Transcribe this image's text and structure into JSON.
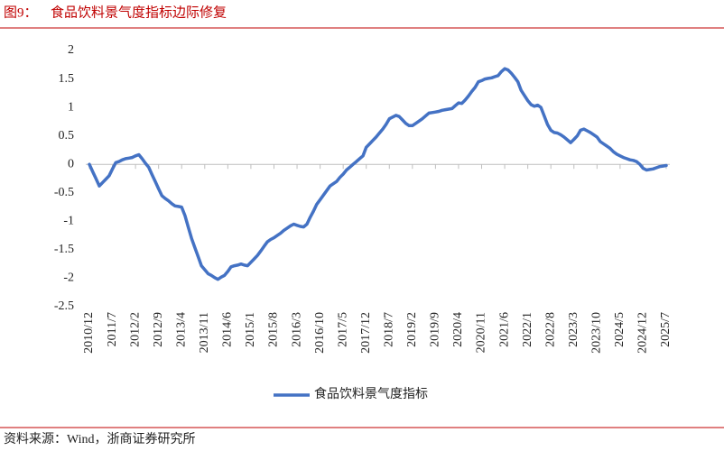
{
  "chart_data": {
    "type": "line",
    "figure_label": "图9：",
    "title": "食品饮料景气度指标边际修复",
    "source": "资料来源：Wind，浙商证券研究所",
    "categories": [
      "2010/12",
      null,
      null,
      null,
      null,
      null,
      null,
      "2011/7",
      null,
      null,
      null,
      null,
      null,
      null,
      "2012/2",
      null,
      null,
      null,
      null,
      null,
      null,
      "2012/9",
      null,
      null,
      null,
      null,
      null,
      null,
      "2013/4",
      null,
      null,
      null,
      null,
      null,
      null,
      "2013/11",
      null,
      null,
      null,
      null,
      null,
      null,
      "2014/6",
      null,
      null,
      null,
      null,
      null,
      null,
      "2015/1",
      null,
      null,
      null,
      null,
      null,
      null,
      "2015/8",
      null,
      null,
      null,
      null,
      null,
      null,
      "2016/3",
      null,
      null,
      null,
      null,
      null,
      null,
      "2016/10",
      null,
      null,
      null,
      null,
      null,
      null,
      "2017/5",
      null,
      null,
      null,
      null,
      null,
      null,
      "2017/12",
      null,
      null,
      null,
      null,
      null,
      null,
      "2018/7",
      null,
      null,
      null,
      null,
      null,
      null,
      "2019/2",
      null,
      null,
      null,
      null,
      null,
      null,
      "2019/9",
      null,
      null,
      null,
      null,
      null,
      null,
      "2020/4",
      null,
      null,
      null,
      null,
      null,
      null,
      "2020/11",
      null,
      null,
      null,
      null,
      null,
      null,
      "2021/6",
      null,
      null,
      null,
      null,
      null,
      null,
      "2022/1",
      null,
      null,
      null,
      null,
      null,
      null,
      "2022/8",
      null,
      null,
      null,
      null,
      null,
      null,
      "2023/3",
      null,
      null,
      null,
      null,
      null,
      null,
      "2023/10",
      null,
      null,
      null,
      null,
      null,
      null,
      "2024/5",
      null,
      null,
      null,
      null,
      null,
      null,
      "2024/12",
      null,
      null,
      null,
      null,
      null,
      null,
      "2025/7"
    ],
    "series": [
      {
        "name": "食品饮料景气度指标",
        "color": "#4472c4",
        "values": [
          0,
          -0.13,
          -0.25,
          -0.38,
          -0.32,
          -0.26,
          -0.2,
          -0.08,
          0.03,
          0.05,
          0.08,
          0.1,
          0.11,
          0.12,
          0.15,
          0.17,
          0.1,
          0.02,
          -0.05,
          -0.18,
          -0.3,
          -0.43,
          -0.55,
          -0.6,
          -0.64,
          -0.69,
          -0.73,
          -0.74,
          -0.75,
          -0.9,
          -1.1,
          -1.3,
          -1.46,
          -1.62,
          -1.78,
          -1.85,
          -1.92,
          -1.95,
          -1.99,
          -2.02,
          -1.98,
          -1.95,
          -1.88,
          -1.8,
          -1.78,
          -1.77,
          -1.75,
          -1.77,
          -1.78,
          -1.72,
          -1.66,
          -1.6,
          -1.52,
          -1.44,
          -1.36,
          -1.32,
          -1.29,
          -1.25,
          -1.21,
          -1.16,
          -1.12,
          -1.08,
          -1.05,
          -1.07,
          -1.09,
          -1.1,
          -1.05,
          -0.93,
          -0.82,
          -0.7,
          -0.62,
          -0.54,
          -0.46,
          -0.38,
          -0.34,
          -0.3,
          -0.23,
          -0.17,
          -0.1,
          -0.05,
          0,
          0.05,
          0.1,
          0.15,
          0.3,
          0.36,
          0.42,
          0.48,
          0.55,
          0.62,
          0.7,
          0.8,
          0.83,
          0.86,
          0.84,
          0.78,
          0.72,
          0.68,
          0.68,
          0.72,
          0.76,
          0.8,
          0.85,
          0.9,
          0.91,
          0.92,
          0.93,
          0.95,
          0.96,
          0.97,
          0.98,
          1.03,
          1.08,
          1.07,
          1.13,
          1.2,
          1.28,
          1.35,
          1.45,
          1.47,
          1.5,
          1.51,
          1.52,
          1.54,
          1.56,
          1.63,
          1.68,
          1.66,
          1.6,
          1.53,
          1.45,
          1.3,
          1.21,
          1.12,
          1.05,
          1.02,
          1.04,
          1.0,
          0.85,
          0.7,
          0.6,
          0.56,
          0.55,
          0.52,
          0.48,
          0.43,
          0.38,
          0.44,
          0.5,
          0.6,
          0.62,
          0.59,
          0.56,
          0.52,
          0.48,
          0.4,
          0.36,
          0.32,
          0.28,
          0.22,
          0.18,
          0.15,
          0.12,
          0.1,
          0.08,
          0.07,
          0.05,
          0,
          -0.07,
          -0.1,
          -0.09,
          -0.08,
          -0.06,
          -0.04,
          -0.03,
          -0.02
        ]
      }
    ],
    "ylim": [
      -2.5,
      2
    ],
    "yticks": [
      -2.5,
      -2,
      -1.5,
      -1,
      -0.5,
      0,
      0.5,
      1,
      1.5,
      2
    ],
    "grid": false,
    "legend": "bottom"
  }
}
